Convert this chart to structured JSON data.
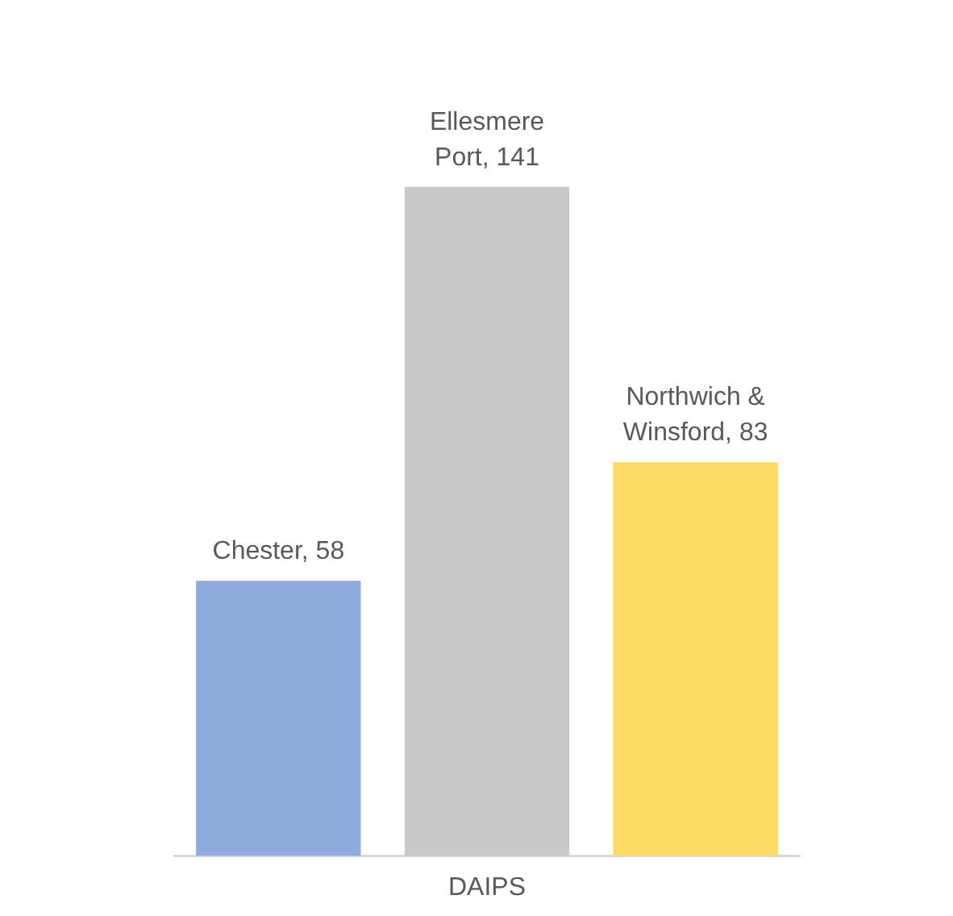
{
  "chart_data": {
    "type": "bar",
    "xlabel": "DAIPS",
    "categories": [
      null,
      null,
      null
    ],
    "values": [
      58,
      141,
      83
    ],
    "colors": [
      "#8faadc",
      "#c9c9c9",
      "#ffd966"
    ],
    "value_labels": [
      "Chester, 58",
      "Ellesmere Port, 141",
      "Northwich & Winsford, 83"
    ],
    "legend": false,
    "grid": false
  }
}
